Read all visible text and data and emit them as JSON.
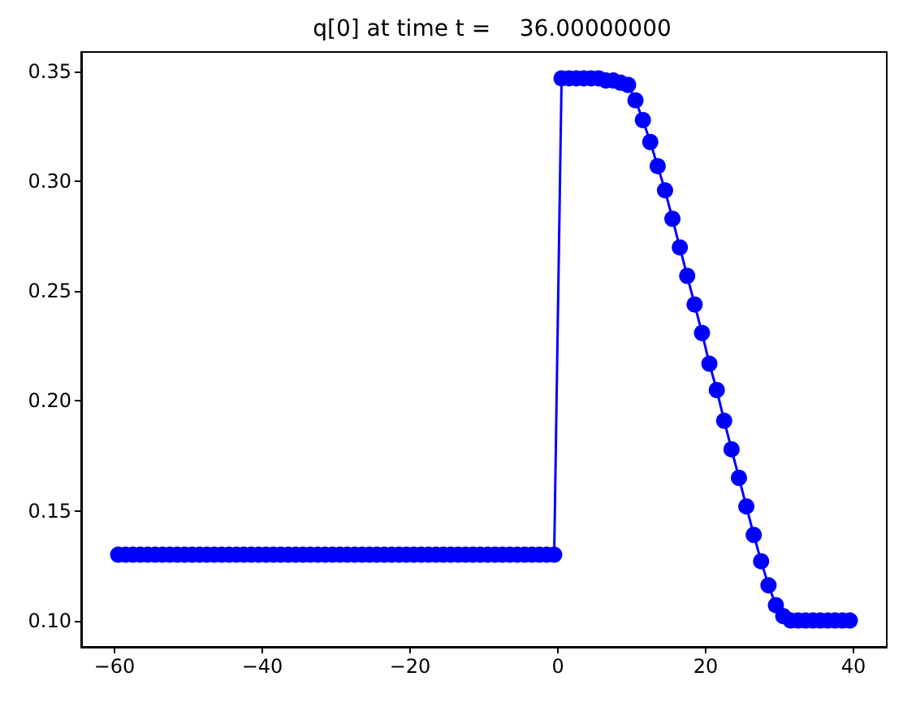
{
  "chart_data": {
    "type": "line",
    "title": "q[0] at time t =    36.00000000",
    "x": [
      -59.5,
      -58.5,
      -57.5,
      -56.5,
      -55.5,
      -54.5,
      -53.5,
      -52.5,
      -51.5,
      -50.5,
      -49.5,
      -48.5,
      -47.5,
      -46.5,
      -45.5,
      -44.5,
      -43.5,
      -42.5,
      -41.5,
      -40.5,
      -39.5,
      -38.5,
      -37.5,
      -36.5,
      -35.5,
      -34.5,
      -33.5,
      -32.5,
      -31.5,
      -30.5,
      -29.5,
      -28.5,
      -27.5,
      -26.5,
      -25.5,
      -24.5,
      -23.5,
      -22.5,
      -21.5,
      -20.5,
      -19.5,
      -18.5,
      -17.5,
      -16.5,
      -15.5,
      -14.5,
      -13.5,
      -12.5,
      -11.5,
      -10.5,
      -9.5,
      -8.5,
      -7.5,
      -6.5,
      -5.5,
      -4.5,
      -3.5,
      -2.5,
      -1.5,
      -0.5,
      0.5,
      1.5,
      2.5,
      3.5,
      4.5,
      5.5,
      6.5,
      7.5,
      8.5,
      9.5,
      10.5,
      11.5,
      12.5,
      13.5,
      14.5,
      15.5,
      16.5,
      17.5,
      18.5,
      19.5,
      20.5,
      21.5,
      22.5,
      23.5,
      24.5,
      25.5,
      26.5,
      27.5,
      28.5,
      29.5,
      30.5,
      31.5,
      32.5,
      33.5,
      34.5,
      35.5,
      36.5,
      37.5,
      38.5,
      39.5
    ],
    "series": [
      {
        "color": "#0000ff",
        "values": [
          0.13,
          0.13,
          0.13,
          0.13,
          0.13,
          0.13,
          0.13,
          0.13,
          0.13,
          0.13,
          0.13,
          0.13,
          0.13,
          0.13,
          0.13,
          0.13,
          0.13,
          0.13,
          0.13,
          0.13,
          0.13,
          0.13,
          0.13,
          0.13,
          0.13,
          0.13,
          0.13,
          0.13,
          0.13,
          0.13,
          0.13,
          0.13,
          0.13,
          0.13,
          0.13,
          0.13,
          0.13,
          0.13,
          0.13,
          0.13,
          0.13,
          0.13,
          0.13,
          0.13,
          0.13,
          0.13,
          0.13,
          0.13,
          0.13,
          0.13,
          0.13,
          0.13,
          0.13,
          0.13,
          0.13,
          0.13,
          0.13,
          0.13,
          0.13,
          0.13,
          0.347,
          0.347,
          0.347,
          0.347,
          0.347,
          0.347,
          0.346,
          0.346,
          0.345,
          0.344,
          0.337,
          0.328,
          0.318,
          0.307,
          0.296,
          0.283,
          0.27,
          0.257,
          0.244,
          0.231,
          0.217,
          0.205,
          0.191,
          0.178,
          0.165,
          0.152,
          0.139,
          0.127,
          0.116,
          0.107,
          0.102,
          0.1,
          0.1,
          0.1,
          0.1,
          0.1,
          0.1,
          0.1,
          0.1,
          0.1
        ]
      }
    ],
    "xlim": [
      -64.5,
      44.5
    ],
    "xticks": [
      {
        "value": -60,
        "label": "−60"
      },
      {
        "value": -40,
        "label": "−40"
      },
      {
        "value": -20,
        "label": "−20"
      },
      0,
      20,
      40
    ],
    "ylim": [
      0.088,
      0.359
    ],
    "yticks": [
      {
        "value": 0.1,
        "label": "0.10"
      },
      {
        "value": 0.15,
        "label": "0.15"
      },
      {
        "value": 0.2,
        "label": "0.20"
      },
      {
        "value": 0.25,
        "label": "0.25"
      },
      {
        "value": 0.3,
        "label": "0.30"
      },
      {
        "value": 0.35,
        "label": "0.35"
      }
    ],
    "grid": false,
    "marker": "circle",
    "line_style": "solid"
  }
}
